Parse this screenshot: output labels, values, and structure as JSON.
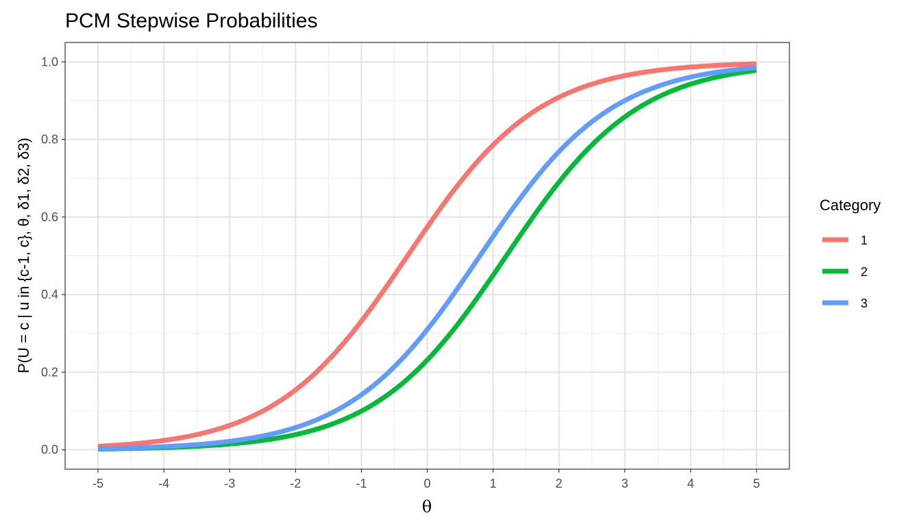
{
  "chart_data": {
    "type": "line",
    "title": "PCM Stepwise Probabilities",
    "xlabel": "θ",
    "ylabel": "P(U = c | u in {c-1, c}, θ, δ1, δ2, δ3)",
    "xlim": [
      -5.5,
      5.5
    ],
    "ylim": [
      -0.05,
      1.05
    ],
    "x_ticks": [
      -5,
      -4,
      -3,
      -2,
      -1,
      0,
      1,
      2,
      3,
      4,
      5
    ],
    "x_tick_labels": [
      "-5",
      "-4",
      "-3",
      "-2",
      "-1",
      "0",
      "1",
      "2",
      "3",
      "4",
      "5"
    ],
    "y_ticks": [
      0.0,
      0.2,
      0.4,
      0.6,
      0.8,
      1.0
    ],
    "y_tick_labels": [
      "0.0",
      "0.2",
      "0.4",
      "0.6",
      "0.8",
      "1.0"
    ],
    "grid": true,
    "legend": {
      "title": "Category",
      "position": "right"
    },
    "series": [
      {
        "name": "1",
        "color": "#F8766D",
        "delta": -0.3,
        "x": [
          -5,
          -4,
          -3,
          -2,
          -1,
          0,
          1,
          2,
          3,
          4,
          5
        ],
        "y": [
          0.011,
          0.024,
          0.063,
          0.154,
          0.332,
          0.574,
          0.786,
          0.909,
          0.964,
          0.986,
          0.995
        ]
      },
      {
        "name": "2",
        "color": "#00BA38",
        "delta": 1.2,
        "x": [
          -5,
          -4,
          -3,
          -2,
          -1,
          0,
          1,
          2,
          3,
          4,
          5
        ],
        "y": [
          0.002,
          0.006,
          0.015,
          0.039,
          0.1,
          0.231,
          0.45,
          0.69,
          0.858,
          0.943,
          0.978
        ]
      },
      {
        "name": "3",
        "color": "#619CFF",
        "delta": 0.8,
        "x": [
          -5,
          -4,
          -3,
          -2,
          -1,
          0,
          1,
          2,
          3,
          4,
          5
        ],
        "y": [
          0.003,
          0.008,
          0.022,
          0.057,
          0.142,
          0.31,
          0.55,
          0.769,
          0.9,
          0.961,
          0.985
        ]
      }
    ]
  }
}
